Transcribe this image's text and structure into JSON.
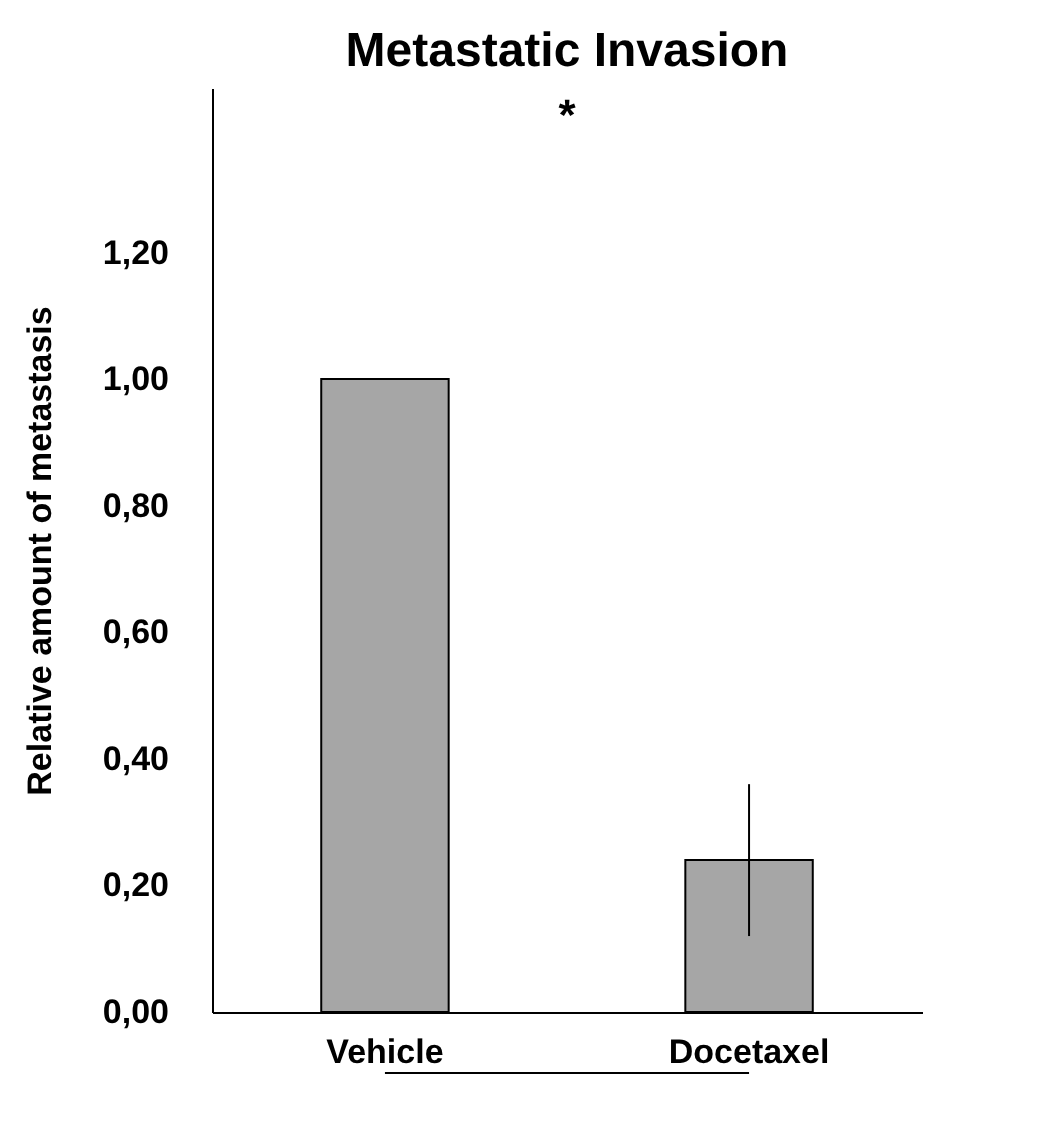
{
  "chart_data": {
    "type": "bar",
    "title": "Metastatic Invasion",
    "ylabel": "Relative amount of metastasis",
    "categories": [
      "Vehicle",
      "Docetaxel"
    ],
    "values": [
      1.0,
      0.24
    ],
    "errors": [
      null,
      0.12
    ],
    "color": "#a6a6a6",
    "ylim": [
      0,
      1.46
    ],
    "yticks": [
      {
        "value": 0,
        "label": "0,00"
      },
      {
        "value": 0.2,
        "label": "0,20"
      },
      {
        "value": 0.4,
        "label": "0,40"
      },
      {
        "value": 0.6,
        "label": "0,60"
      },
      {
        "value": 0.8,
        "label": "0,80"
      },
      {
        "value": 1.0,
        "label": "1,00"
      },
      {
        "value": 1.2,
        "label": "1,20"
      }
    ],
    "annotations": [
      "*"
    ],
    "grid": false
  }
}
